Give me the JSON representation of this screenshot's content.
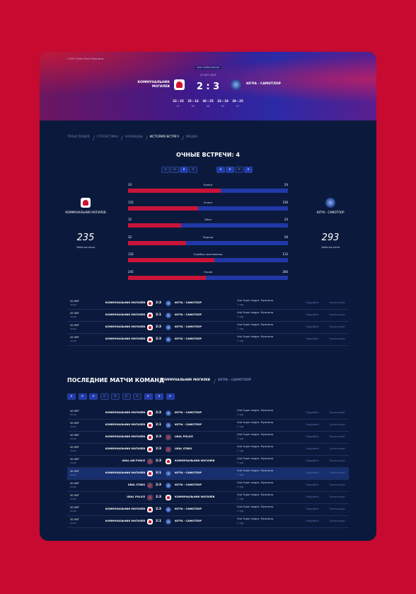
{
  "header": {
    "breadcrumb": "← ЕХЛ Супер Лига Мужчины",
    "league": "URAL SUPER LEAGUE",
    "date": "13 ОКТ 2023",
    "home_team": "КОММУНАЛЬНИК МОГИЛЕВ",
    "away_team": "ЮГРА - САМОТЛОР",
    "score": "2 : 3",
    "sets": [
      {
        "score": "23 : 25",
        "time": "27'"
      },
      {
        "score": "25 : 16",
        "time": "28'"
      },
      {
        "score": "20 : 25",
        "time": "26'"
      },
      {
        "score": "23 : 18",
        "time": "30'"
      },
      {
        "score": "20 : 25",
        "time": "25'"
      }
    ]
  },
  "tabs": [
    "ТРАНСЛЯЦИЯ",
    "СТАТИСТИКА",
    "КОМАНДЫ",
    "ИСТОРИЯ ВСТРЕЧ",
    "МЕДИА"
  ],
  "active_tab": 3,
  "h2h": {
    "title": "ОЧНЫЕ ВСТРЕЧИ: 4",
    "home_form": [
      "П",
      "П",
      "В",
      "П"
    ],
    "away_form": [
      "В",
      "В",
      "П",
      "В"
    ],
    "home": {
      "name": "КОММУНАЛЬНИК МОГИЛЕВ",
      "goals": 235,
      "goals_label": "Забитые мячи"
    },
    "away": {
      "name": "ЮГРА - САМОТЛОР",
      "goals": 293,
      "goals_label": "Забитые мячи"
    },
    "stats": [
      {
        "label": "Блоки",
        "home": 33,
        "away": 24
      },
      {
        "label": "Атаки",
        "home": 122,
        "away": 156
      },
      {
        "label": "Эйсы",
        "home": 12,
        "away": 24
      },
      {
        "label": "Подачи",
        "home": 32,
        "away": 56
      },
      {
        "label": "Ошибки противника",
        "home": 132,
        "away": 112
      },
      {
        "label": "Очков",
        "home": 245,
        "away": 260
      }
    ],
    "matches": [
      {
        "date": "20 ОКТ",
        "time": "18:00",
        "home": "КОММУНАЛЬНИК МОГИЛЕВ",
        "score": "2:3",
        "away": "ЮГРА - САМОТЛОР",
        "tournament": "Ural Super league. Мужчины",
        "round": "1 тур",
        "details": "Подробно",
        "stream": "Трансляция"
      },
      {
        "date": "20 ОКТ",
        "time": "18:00",
        "home": "КОММУНАЛЬНИК МОГИЛЕВ",
        "score": "2:1",
        "away": "ЮГРА - САМОТЛОР",
        "tournament": "Ural Super league. Мужчины",
        "round": "1 тур",
        "details": "Подробно",
        "stream": "Трансляция"
      },
      {
        "date": "20 ОКТ",
        "time": "18:00",
        "home": "КОММУНАЛЬНИК МОГИЛЕВ",
        "score": "2:3",
        "away": "ЮГРА - САМОТЛОР",
        "tournament": "Ural Super league. Мужчины",
        "round": "1 тур",
        "details": "Подробно",
        "stream": "Трансляция"
      },
      {
        "date": "20 ОКТ",
        "time": "18:00",
        "home": "КОММУНАЛЬНИК МОГИЛЕВ",
        "score": "2:3",
        "away": "ЮГРА - САМОТЛОР",
        "tournament": "Ural Super league. Мужчины",
        "round": "1 тур",
        "details": "Подробно",
        "stream": "Трансляция"
      }
    ]
  },
  "recent": {
    "title": "ПОСЛЕДНИЕ МАТЧИ КОМАНД",
    "team_tabs": [
      "КОММУНАЛЬНИК МОГИЛЕВ",
      "ЮГРА - САМОТЛОР"
    ],
    "active_team": 0,
    "form": [
      "В",
      "В",
      "В",
      "П",
      "П",
      "П",
      "П",
      "В",
      "В",
      "В"
    ],
    "highlighted_row": 5,
    "matches": [
      {
        "date": "20 ОКТ",
        "time": "18:00",
        "home": "КОММУНАЛЬНИК МОГИЛЕВ",
        "score": "2:3",
        "away": "ЮГРА - САМОТЛОР",
        "tournament": "Ural Super league. Мужчины",
        "round": "1 тур",
        "details": "Подробно",
        "stream": "Трансляция"
      },
      {
        "date": "20 ОКТ",
        "time": "18:00",
        "home": "КОММУНАЛЬНИК МОГИЛЕВ",
        "score": "2:1",
        "away": "ЮГРА - САМОТЛОР",
        "tournament": "Ural Super league. Мужчины",
        "round": "1 тур",
        "details": "Подробно",
        "stream": "Трансляция"
      },
      {
        "date": "20 ОКТ",
        "time": "18:00",
        "home": "КОММУНАЛЬНИК МОГИЛЕВ",
        "score": "2:3",
        "away": "URAL POLICE",
        "tournament": "Ural Super league. Мужчины",
        "round": "1 тур",
        "details": "Подробно",
        "stream": "Трансляция"
      },
      {
        "date": "20 ОКТ",
        "time": "18:00",
        "home": "КОММУНАЛЬНИК МОГИЛЕВ",
        "score": "2:3",
        "away": "URAL STARS",
        "tournament": "Ural Super league. Мужчины",
        "round": "1 тур",
        "details": "Подробно",
        "stream": "Трансляция"
      },
      {
        "date": "20 ОКТ",
        "time": "18:00",
        "home": "URAL AIR FORCE",
        "score": "2:3",
        "away": "КОММУНАЛЬНИК МОГИЛЕВ",
        "tournament": "Ural Super league. Мужчины",
        "round": "1 тур",
        "details": "Подробно",
        "stream": "Трансляция"
      },
      {
        "date": "20 ОКТ",
        "time": "18:00",
        "home": "КОММУНАЛЬНИК МОГИЛЕВ",
        "score": "3:1",
        "away": "ЮГРА - САМОТЛОР",
        "tournament": "Ural Super league. Мужчины",
        "round": "1 тур",
        "details": "Подробно",
        "stream": "Трансляция"
      },
      {
        "date": "20 ОКТ",
        "time": "18:00",
        "home": "URAL STARS",
        "score": "2:3",
        "away": "ЮГРА - САМОТЛОР",
        "tournament": "Ural Super league. Мужчины",
        "round": "1 тур",
        "details": "Подробно",
        "stream": "Трансляция"
      },
      {
        "date": "20 ОКТ",
        "time": "18:00",
        "home": "URAL POLICE",
        "score": "2:3",
        "away": "КОММУНАЛЬНИК МОГИЛЕВ",
        "tournament": "Ural Super league. Мужчины",
        "round": "1 тур",
        "details": "Подробно",
        "stream": "Трансляция"
      },
      {
        "date": "20 ОКТ",
        "time": "18:00",
        "home": "КОММУНАЛЬНИК МОГИЛЕВ",
        "score": "2:3",
        "away": "ЮГРА - САМОТЛОР",
        "tournament": "Ural Super league. Мужчины",
        "round": "1 тур",
        "details": "Подробно",
        "stream": "Трансляция"
      },
      {
        "date": "20 ОКТ",
        "time": "18:00",
        "home": "КОММУНАЛЬНИК МОГИЛЕВ",
        "score": "2:1",
        "away": "ЮГРА - САМОТЛОР",
        "tournament": "Ural Super league. Мужчины",
        "round": "1 тур",
        "details": "Подробно",
        "stream": "Трансляция"
      }
    ]
  }
}
